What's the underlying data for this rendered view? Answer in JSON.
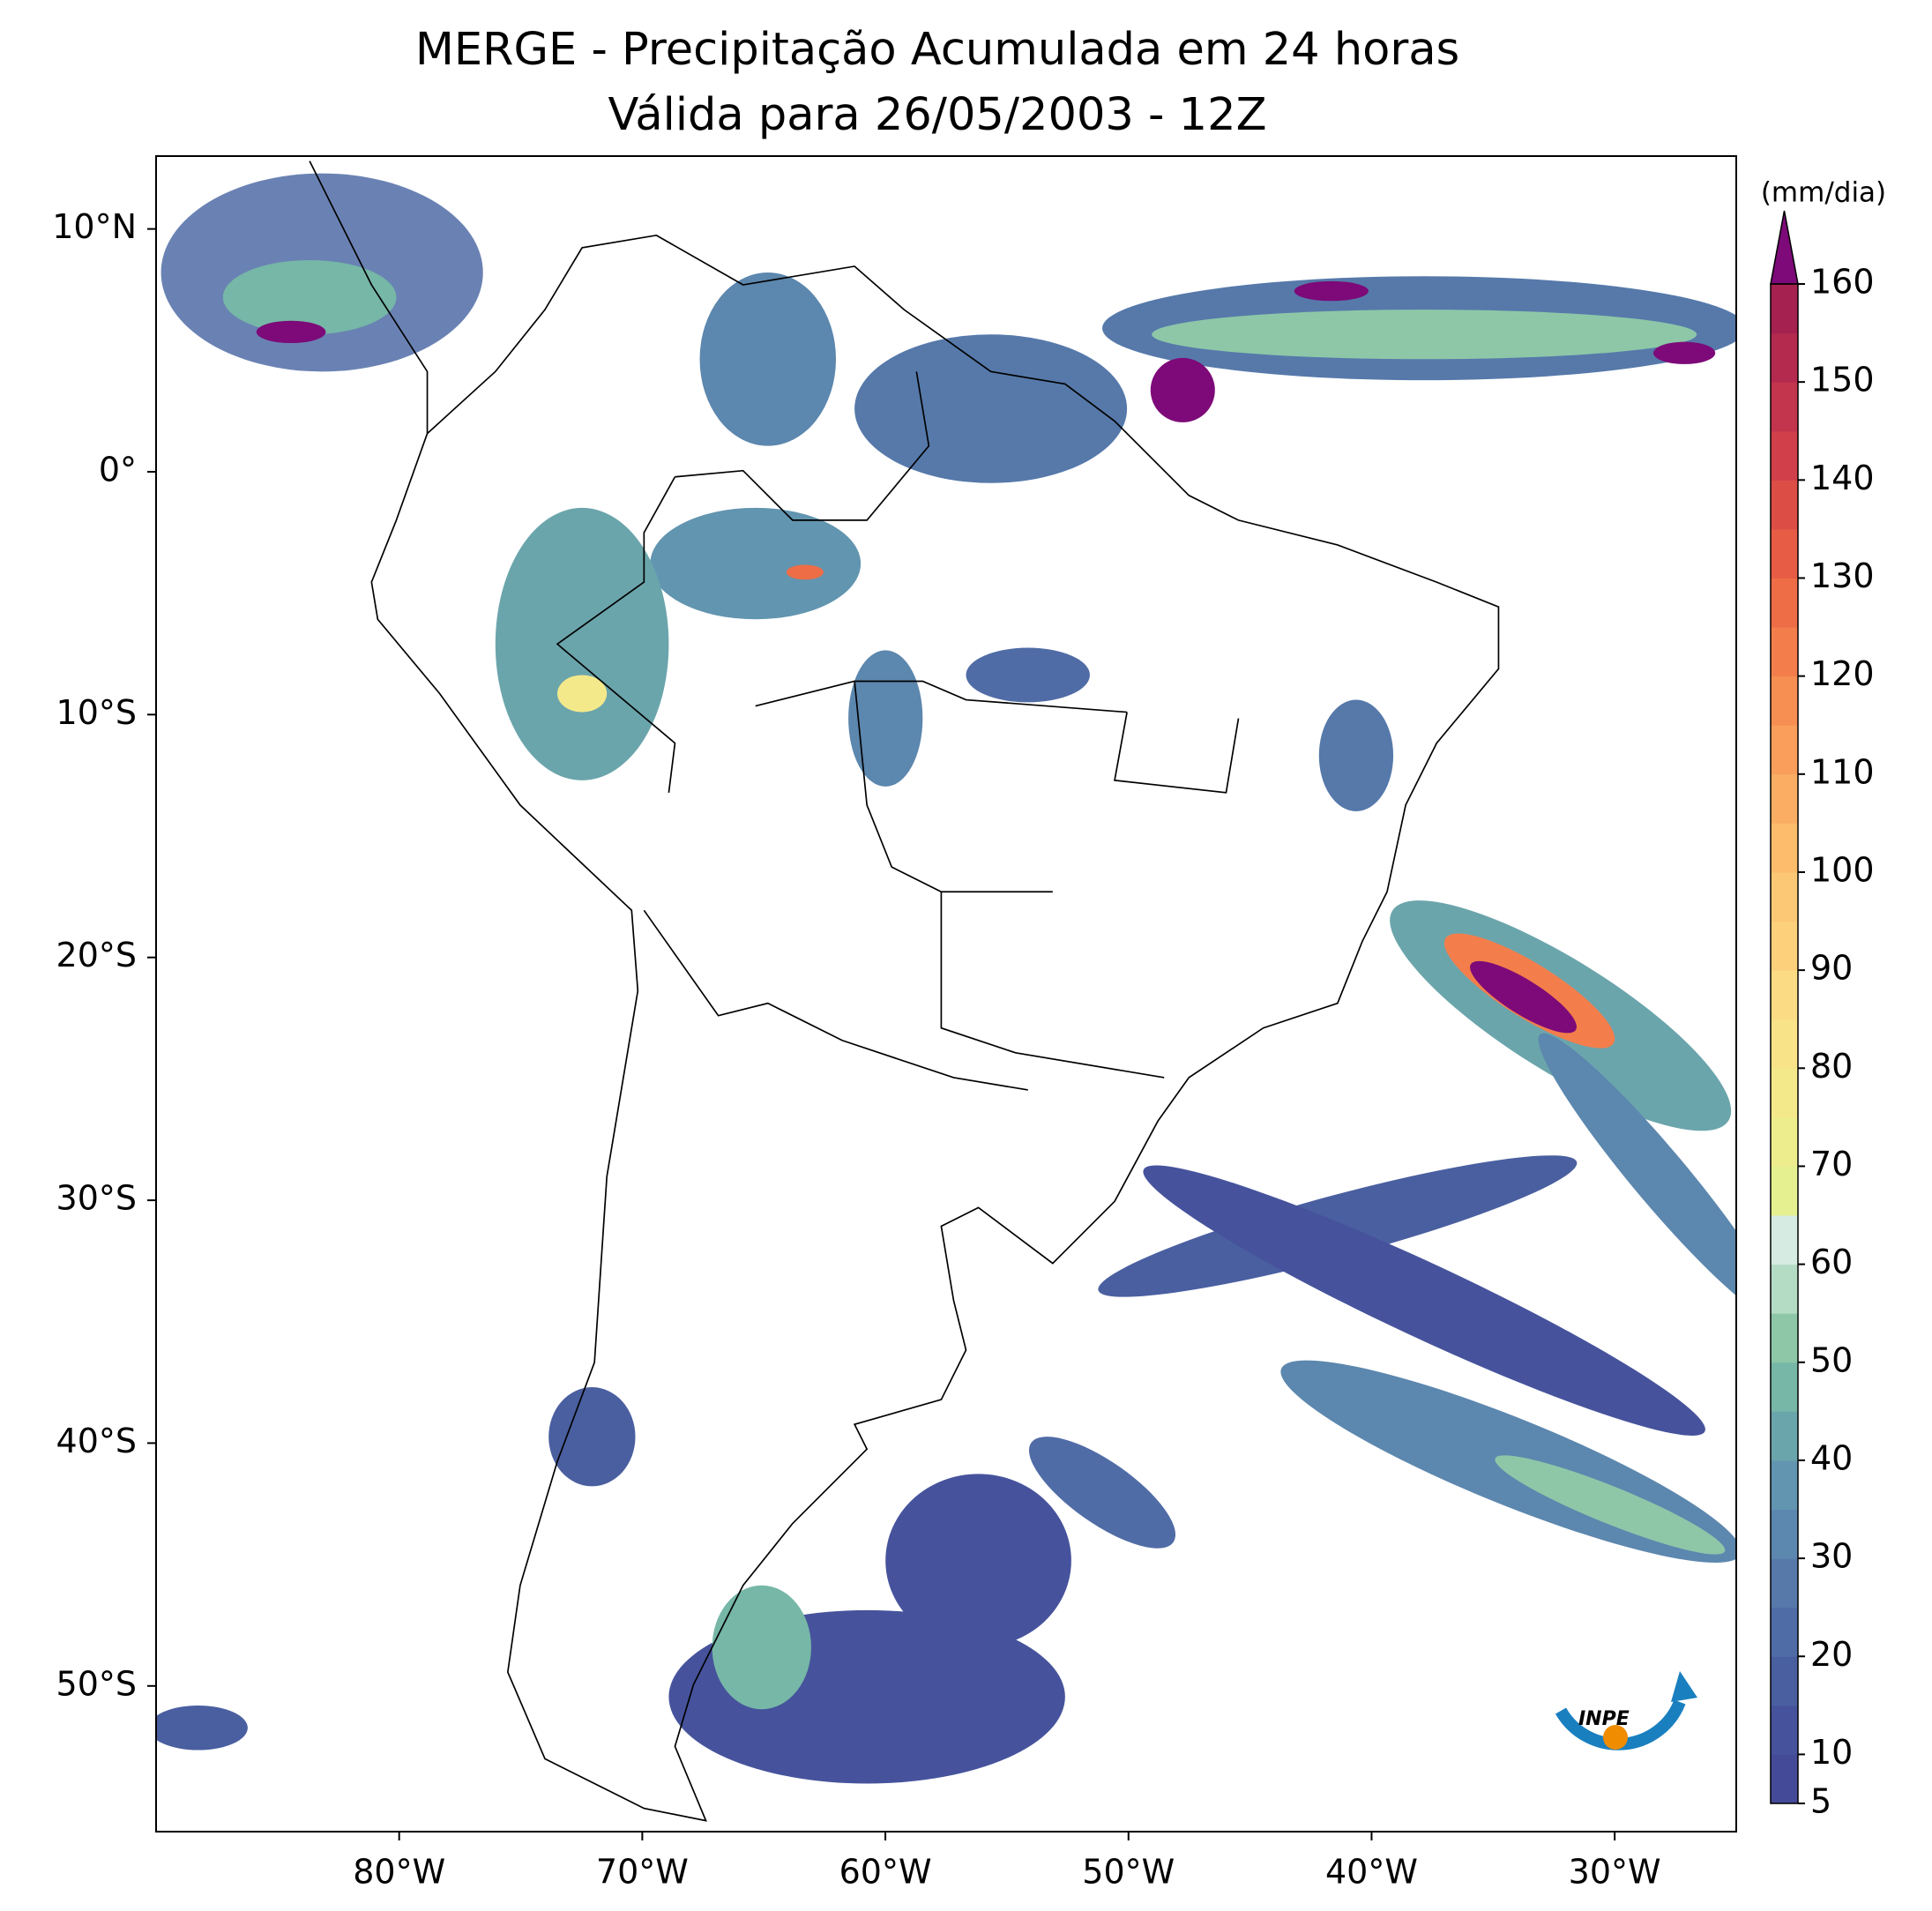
{
  "chart_data": {
    "type": "map",
    "title": [
      "MERGE - Precipitação Acumulada em 24 horas",
      "Válida para 26/05/2003 - 12Z"
    ],
    "xlim": [
      -90,
      -25
    ],
    "ylim": [
      -56,
      13
    ],
    "xticks": [
      {
        "value": -80,
        "label": "80°W"
      },
      {
        "value": -70,
        "label": "70°W"
      },
      {
        "value": -60,
        "label": "60°W"
      },
      {
        "value": -50,
        "label": "50°W"
      },
      {
        "value": -40,
        "label": "40°W"
      },
      {
        "value": -30,
        "label": "30°W"
      }
    ],
    "yticks": [
      {
        "value": 10,
        "label": "10°N"
      },
      {
        "value": 0,
        "label": "0°"
      },
      {
        "value": -10,
        "label": "10°S"
      },
      {
        "value": -20,
        "label": "20°S"
      },
      {
        "value": -30,
        "label": "30°S"
      },
      {
        "value": -40,
        "label": "40°S"
      },
      {
        "value": -50,
        "label": "50°S"
      }
    ],
    "colorbar": {
      "label": "(mm/dia)",
      "clim": [
        5,
        160
      ],
      "ticks": [
        5,
        10,
        20,
        30,
        40,
        50,
        60,
        70,
        80,
        90,
        100,
        110,
        120,
        130,
        140,
        150,
        160
      ],
      "colors": [
        "#444a98",
        "#46539c",
        "#4a5fa0",
        "#506ca6",
        "#5679aa",
        "#5c87ae",
        "#6295af",
        "#6ba5ac",
        "#76b7a7",
        "#8dc7a8",
        "#b4dcc4",
        "#d6ebe2",
        "#e5f190",
        "#eeed8e",
        "#f4e98a",
        "#f9e388",
        "#fbdc84",
        "#fdd17c",
        "#fdc875",
        "#fcbc6c",
        "#fbae63",
        "#f99f5b",
        "#f78f53",
        "#f37e4c",
        "#ee6d47",
        "#e65c45",
        "#dc4d46",
        "#d03f4a",
        "#c3344d",
        "#b42a4f",
        "#a42150"
      ],
      "over_color": "#7d0a78"
    },
    "logo": "INPE"
  }
}
